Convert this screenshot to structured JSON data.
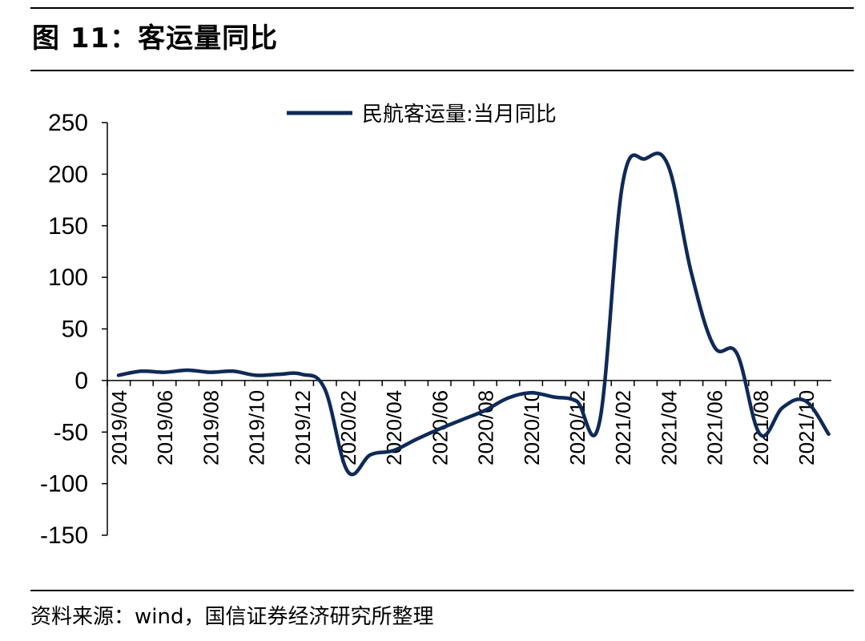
{
  "header": {
    "figure_title": "图 11：客运量同比"
  },
  "footer": {
    "source": "资料来源：wind，国信证券经济研究所整理"
  },
  "colors": {
    "series": "#0f2a57",
    "axis": "#000000",
    "text": "#000000"
  },
  "chart_data": {
    "type": "line",
    "title": "",
    "xlabel": "",
    "ylabel": "",
    "ylim": [
      -150,
      250
    ],
    "yticks": [
      250,
      200,
      150,
      100,
      50,
      0,
      -50,
      -100,
      -150
    ],
    "xtick_labels": [
      "2019/04",
      "2019/06",
      "2019/08",
      "2019/10",
      "2019/12",
      "2020/02",
      "2020/04",
      "2020/06",
      "2020/08",
      "2020/10",
      "2020/12",
      "2021/02",
      "2021/04",
      "2021/06",
      "2021/08",
      "2021/10"
    ],
    "grid": false,
    "legend": "top-center",
    "x": [
      "2019/04",
      "2019/05",
      "2019/06",
      "2019/07",
      "2019/08",
      "2019/09",
      "2019/10",
      "2019/11",
      "2019/12",
      "2020/01",
      "2020/02",
      "2020/03",
      "2020/04",
      "2020/05",
      "2020/06",
      "2020/07",
      "2020/08",
      "2020/09",
      "2020/10",
      "2020/11",
      "2020/12",
      "2021/01",
      "2021/02",
      "2021/03",
      "2021/04",
      "2021/05",
      "2021/06",
      "2021/07",
      "2021/08",
      "2021/09",
      "2021/10",
      "2021/11"
    ],
    "series": [
      {
        "name": "民航客运量:当月同比",
        "values": [
          5,
          9,
          8,
          10,
          8,
          9,
          5,
          6,
          6,
          -8,
          -88,
          -72,
          -68,
          -57,
          -47,
          -38,
          -29,
          -17,
          -12,
          -16,
          -20,
          -40,
          190,
          215,
          208,
          105,
          33,
          26,
          -52,
          -26,
          -20,
          -52
        ]
      }
    ]
  }
}
